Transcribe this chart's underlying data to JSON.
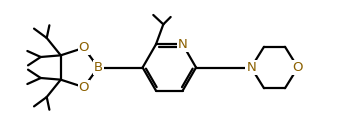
{
  "bg_color": "#ffffff",
  "line_color": "#000000",
  "atom_color": "#8B6000",
  "line_width": 1.6,
  "font_size": 9.5,
  "figsize": [
    3.52,
    1.35
  ],
  "dpi": 100,
  "xlim": [
    0,
    10.5
  ],
  "ylim": [
    0,
    4.0
  ]
}
